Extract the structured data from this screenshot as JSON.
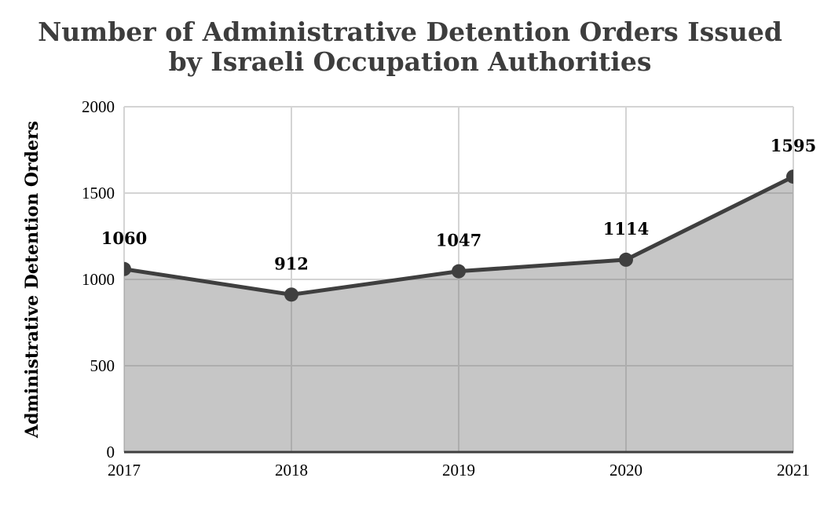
{
  "title_lines": [
    "Number of Administrative Detention Orders Issued",
    "by Israeli Occupation Authorities"
  ],
  "chart_data": {
    "type": "area",
    "title": "Number of Administrative Detention Orders Issued by Israeli Occupation Authorities",
    "categories": [
      "2017",
      "2018",
      "2019",
      "2020",
      "2021"
    ],
    "values": [
      1060,
      912,
      1047,
      1114,
      1595
    ],
    "data_labels": [
      "1060",
      "912",
      "1047",
      "1114",
      "1595"
    ],
    "xlabel": "",
    "ylabel": "Administrative Detention Orders",
    "ylim": [
      0,
      2000
    ],
    "yticks": [
      0,
      500,
      1000,
      1500,
      2000
    ],
    "ytick_labels": [
      "0",
      "500",
      "1000",
      "1500",
      "2000"
    ],
    "grid": true,
    "legend": "none",
    "style": {
      "line_color": "#3f3f3f",
      "marker_color": "#3f3f3f",
      "area_fill": "rgba(120,120,120,0.42)",
      "gridline_color": "#d4d4d4",
      "axis_color": "#3f3f3f",
      "title_color": "#3d3d3d",
      "label_color": "#000000"
    }
  }
}
